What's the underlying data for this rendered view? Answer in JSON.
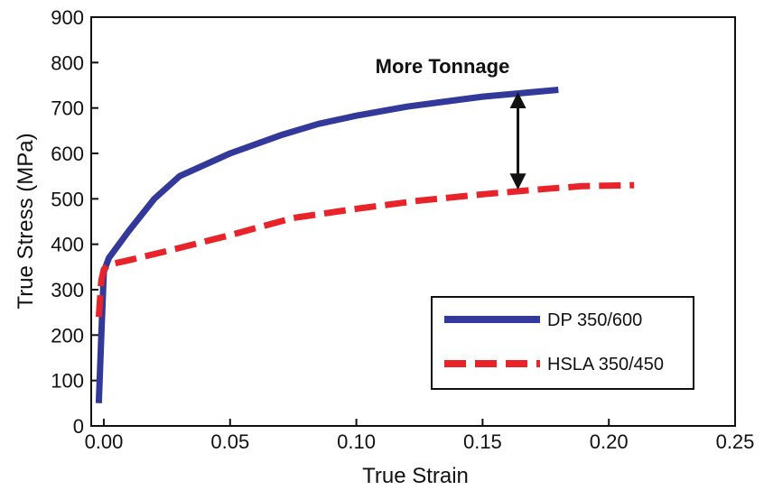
{
  "chart_data": {
    "type": "line",
    "xlabel": "True Strain",
    "ylabel": "True Stress (MPa)",
    "xlim": [
      -0.005,
      0.25
    ],
    "ylim": [
      0,
      900
    ],
    "xticks": [
      0.0,
      0.05,
      0.1,
      0.15,
      0.2,
      0.25
    ],
    "xtick_labels": [
      "0.00",
      "0.05",
      "0.10",
      "0.15",
      "0.20",
      "0.25"
    ],
    "yticks": [
      0,
      100,
      200,
      300,
      400,
      500,
      600,
      700,
      800,
      900
    ],
    "ytick_labels": [
      "0",
      "100",
      "200",
      "300",
      "400",
      "500",
      "600",
      "700",
      "800",
      "900"
    ],
    "grid": false,
    "legend_position": "bottom-right",
    "series": [
      {
        "name": "DP 350/600",
        "color": "#33389b",
        "style": "solid",
        "x": [
          -0.002,
          -0.001,
          0.0,
          0.002,
          0.01,
          0.02,
          0.03,
          0.05,
          0.07,
          0.085,
          0.1,
          0.12,
          0.15,
          0.18
        ],
        "y": [
          50,
          200,
          340,
          370,
          430,
          500,
          550,
          600,
          640,
          665,
          683,
          703,
          725,
          740
        ]
      },
      {
        "name": "HSLA 350/450",
        "color": "#e8232a",
        "style": "dashed",
        "x": [
          -0.002,
          -0.001,
          0.0,
          0.002,
          0.01,
          0.025,
          0.05,
          0.075,
          0.1,
          0.125,
          0.15,
          0.175,
          0.19,
          0.21
        ],
        "y": [
          240,
          320,
          345,
          355,
          365,
          385,
          420,
          458,
          478,
          496,
          510,
          522,
          528,
          530
        ]
      }
    ],
    "annotations": [
      {
        "text": "More Tonnage",
        "x": 0.164,
        "y1": 735,
        "y2": 520
      }
    ]
  }
}
